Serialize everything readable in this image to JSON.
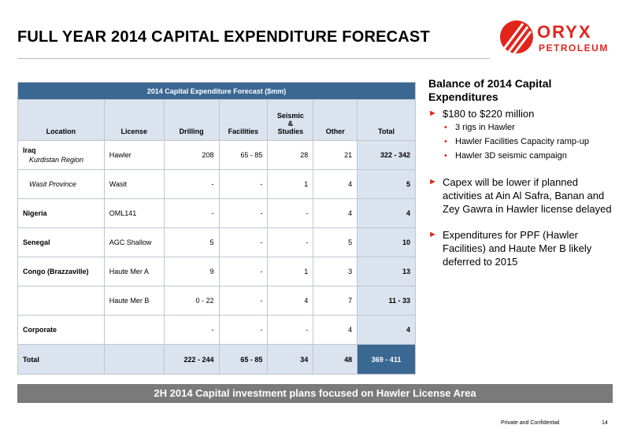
{
  "title": "FULL YEAR 2014 CAPITAL EXPENDITURE FORECAST",
  "logo": {
    "brand": "ORYX",
    "sub": "PETROLEUM",
    "accent": "#e1251b"
  },
  "table": {
    "caption": "2014 Capital Expenditure Forecast ($mm)",
    "headers": {
      "location": "Location",
      "license": "License",
      "drilling": "Drilling",
      "facilities": "Facilities",
      "seismic_1": "Seismic",
      "seismic_2": "&",
      "seismic_3": "Studies",
      "other": "Other",
      "total": "Total"
    },
    "rows": [
      {
        "location_top": "Iraq",
        "location": "Kurdistan Region",
        "license": "Hawler",
        "drilling": "208",
        "facilities": "65 - 85",
        "seismic": "28",
        "other": "21",
        "total": "322 - 342"
      },
      {
        "location": "Wasit Province",
        "license": "Wasit",
        "drilling": "-",
        "facilities": "-",
        "seismic": "1",
        "other": "4",
        "total": "5"
      },
      {
        "location": "Nigeria",
        "license": "OML141",
        "drilling": "-",
        "facilities": "-",
        "seismic": "-",
        "other": "4",
        "total": "4"
      },
      {
        "location": "Senegal",
        "license": "AGC Shallow",
        "drilling": "5",
        "facilities": "-",
        "seismic": "-",
        "other": "5",
        "total": "10"
      },
      {
        "location": "Congo (Brazzaville)",
        "license": "Haute Mer A",
        "drilling": "9",
        "facilities": "-",
        "seismic": "1",
        "other": "3",
        "total": "13"
      },
      {
        "location": "",
        "license": "Haute Mer B",
        "drilling": "0 - 22",
        "facilities": "-",
        "seismic": "4",
        "other": "7",
        "total": "11 - 33"
      },
      {
        "location": "Corporate",
        "license": "",
        "drilling": "-",
        "facilities": "-",
        "seismic": "-",
        "other": "4",
        "total": "4"
      }
    ],
    "sum": {
      "label": "Total",
      "drilling": "222 - 244",
      "facilities": "65 - 85",
      "seismic": "34",
      "other": "48",
      "total": "369 - 411"
    }
  },
  "right": {
    "heading": "Balance of 2014 Capital Expenditures",
    "b1": "$180 to $220 million",
    "b1_subs": [
      "3 rigs in Hawler",
      "Hawler Facilities Capacity ramp-up",
      "Hawler 3D seismic campaign"
    ],
    "b2": "Capex will be lower if planned activities at Ain Al Safra, Banan and Zey Gawra in Hawler license delayed",
    "b3": "Expenditures for PPF (Hawler Facilities) and Haute Mer B likely deferred to 2015",
    "arrow": "►",
    "dot": "•"
  },
  "banner": "2H 2014 Capital investment plans focused on Hawler License Area",
  "footer": {
    "confidential": "Private and Confidential",
    "page": "14"
  }
}
